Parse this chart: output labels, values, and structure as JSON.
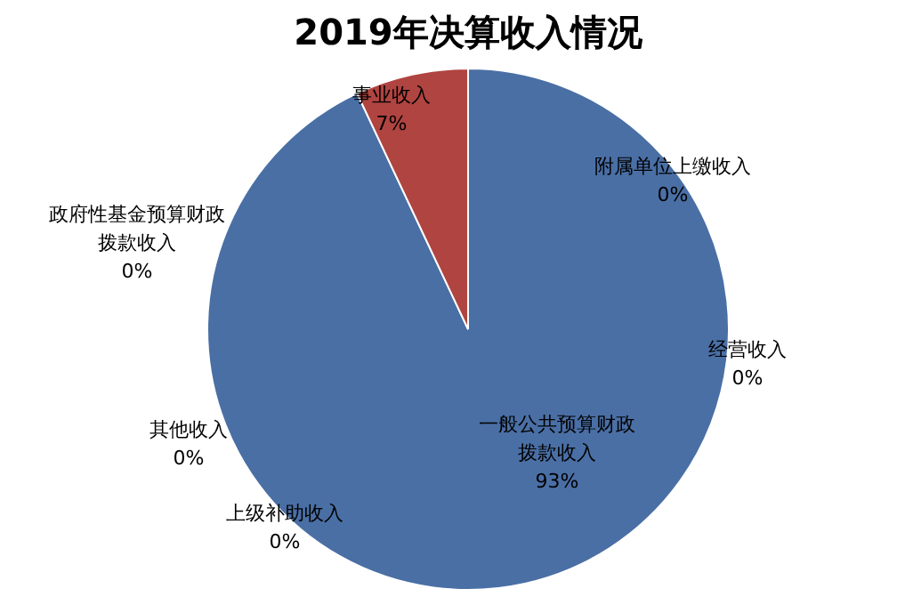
{
  "chart_data": {
    "type": "pie",
    "title": "2019年决算收入情况",
    "categories": [
      "一般公共预算财政拨款收入",
      "上级补助收入",
      "其他收入",
      "政府性基金预算财政拨款收入",
      "事业收入",
      "附属单位上缴收入",
      "经营收入"
    ],
    "values": [
      93,
      0,
      0,
      0,
      7,
      0,
      0
    ],
    "colors": [
      "#4a6fa5",
      "#9bbb59",
      "#8064a2",
      "#4bacc6",
      "#b04440",
      "#f79646",
      "#2c4d75"
    ],
    "value_labels": [
      "93%",
      "0%",
      "0%",
      "0%",
      "7%",
      "0%",
      "0%"
    ],
    "legend": false
  }
}
